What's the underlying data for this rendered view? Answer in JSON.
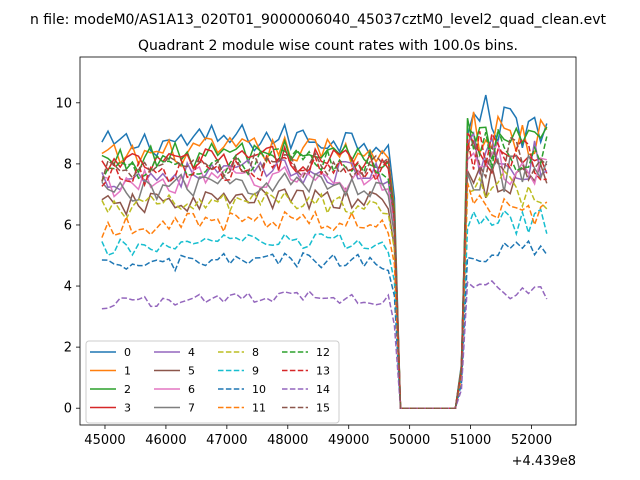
{
  "chart_data": {
    "type": "line",
    "suptitle": "n file: modeM0/AS1A13_020T01_9000006040_45037cztM0_level2_quad_clean.evt",
    "title": "Quadrant 2 module wise count rates with 100.0s bins.",
    "xlabel": "",
    "ylabel": "",
    "x_offset_label": "+4.439e8",
    "xlim": [
      44590,
      52730
    ],
    "ylim": [
      -0.55,
      11.5
    ],
    "xticks": [
      45000,
      46000,
      47000,
      48000,
      49000,
      50000,
      51000,
      52000
    ],
    "xtick_labels": [
      "45000",
      "46000",
      "47000",
      "48000",
      "49000",
      "50000",
      "51000",
      "52000"
    ],
    "yticks": [
      0,
      2,
      4,
      6,
      8,
      10
    ],
    "ytick_labels": [
      "0",
      "2",
      "4",
      "6",
      "8",
      "10"
    ],
    "grid": false,
    "legend_position": "lower-left",
    "legend_columns": 4,
    "x_start": 44950,
    "bin_width": 100,
    "gap": {
      "from": 49850,
      "to": 50750
    },
    "gap_edges": {
      "pre_drop": 49750,
      "rise_start": 50850
    },
    "series": [
      {
        "name": "0",
        "color": "#1f77b4",
        "dash": "solid",
        "pre_level": 8.6,
        "post_level": 9.5
      },
      {
        "name": "1",
        "color": "#ff7f0e",
        "dash": "solid",
        "pre_level": 8.2,
        "post_level": 9.0
      },
      {
        "name": "2",
        "color": "#2ca02c",
        "dash": "solid",
        "pre_level": 8.1,
        "post_level": 8.8
      },
      {
        "name": "3",
        "color": "#d62728",
        "dash": "solid",
        "pre_level": 7.9,
        "post_level": 8.5
      },
      {
        "name": "4",
        "color": "#9467bd",
        "dash": "solid",
        "pre_level": 7.5,
        "post_level": 8.3
      },
      {
        "name": "5",
        "color": "#8c564b",
        "dash": "solid",
        "pre_level": 6.6,
        "post_level": 7.6
      },
      {
        "name": "6",
        "color": "#e377c2",
        "dash": "solid",
        "pre_level": 7.3,
        "post_level": 8.1
      },
      {
        "name": "7",
        "color": "#7f7f7f",
        "dash": "solid",
        "pre_level": 7.1,
        "post_level": 7.8
      },
      {
        "name": "8",
        "color": "#bcbd22",
        "dash": "dashed",
        "pre_level": 6.5,
        "post_level": 7.3
      },
      {
        "name": "9",
        "color": "#17becf",
        "dash": "dashed",
        "pre_level": 5.2,
        "post_level": 6.2
      },
      {
        "name": "10",
        "color": "#1f77b4",
        "dash": "dashed",
        "pre_level": 4.6,
        "post_level": 5.3
      },
      {
        "name": "11",
        "color": "#ff7f0e",
        "dash": "dashed",
        "pre_level": 5.9,
        "post_level": 6.8
      },
      {
        "name": "12",
        "color": "#2ca02c",
        "dash": "dashed",
        "pre_level": 7.8,
        "post_level": 8.6
      },
      {
        "name": "13",
        "color": "#d62728",
        "dash": "dashed",
        "pre_level": 7.6,
        "post_level": 8.4
      },
      {
        "name": "14",
        "color": "#9467bd",
        "dash": "dashed",
        "pre_level": 3.4,
        "post_level": 4.0
      },
      {
        "name": "15",
        "color": "#8c564b",
        "dash": "dashed",
        "pre_level": 7.7,
        "post_level": 8.3
      }
    ]
  }
}
